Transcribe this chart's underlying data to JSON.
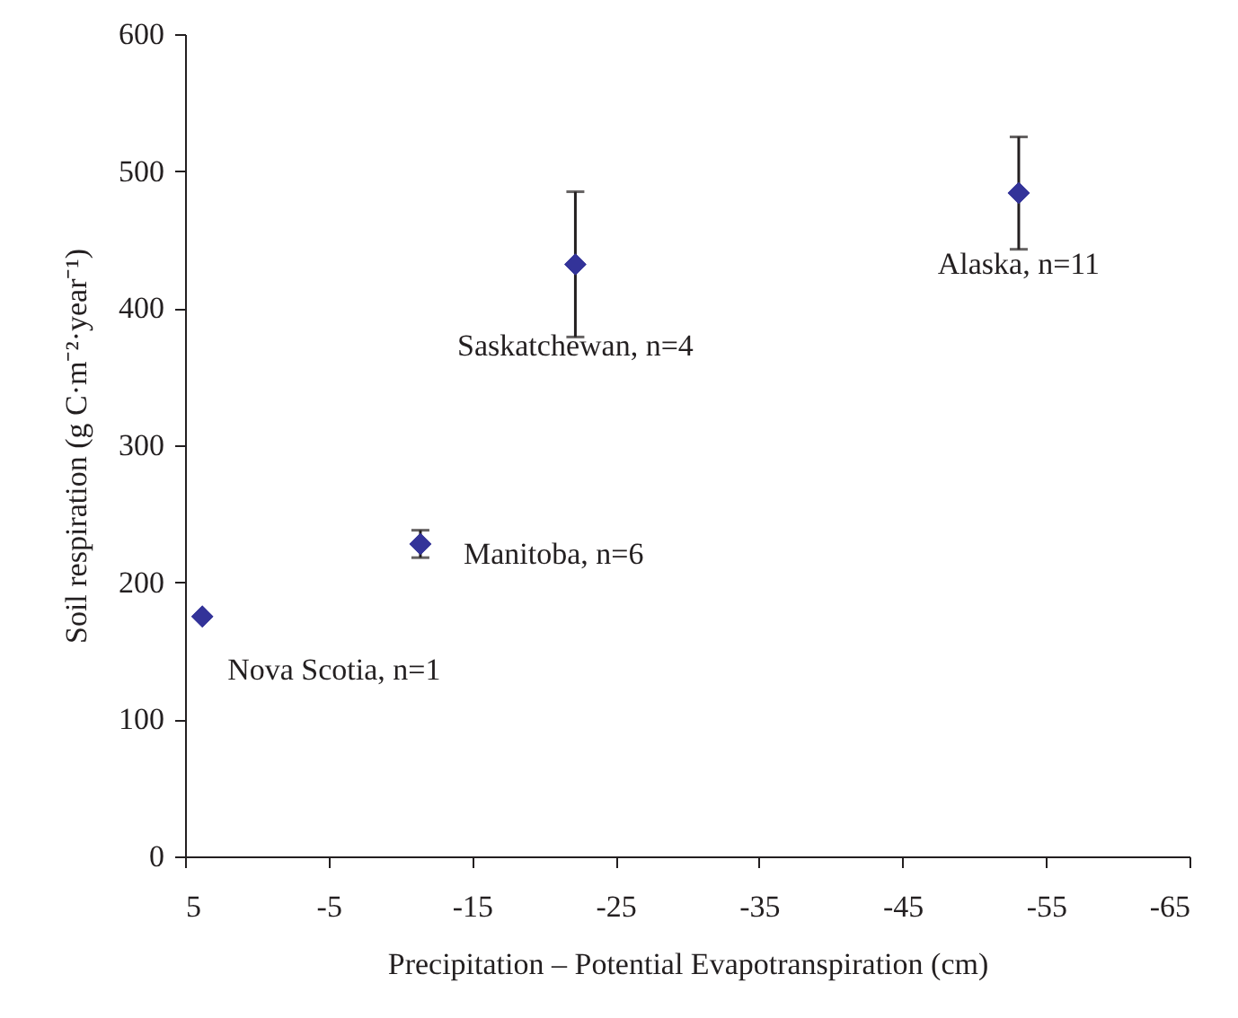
{
  "chart_data": {
    "type": "scatter",
    "xlabel": "Precipitation – Potential Evapotranspiration (cm)",
    "ylabel": "Soil respiration (g C·m⁻²·year⁻¹)",
    "x": [
      3.8,
      -11.4,
      -22.2,
      -53.1
    ],
    "series": [
      {
        "color": "#333399",
        "values": [
          175,
          228,
          432,
          484
        ],
        "errors": [
          null,
          10,
          53,
          41
        ]
      }
    ],
    "marker": "diamond",
    "grid": false,
    "xlim": [
      5,
      -65
    ],
    "xticks": [
      5,
      -5,
      -15,
      -25,
      -35,
      -45,
      -55,
      -65
    ],
    "ylim": [
      0,
      600
    ],
    "yticks": [
      0,
      100,
      200,
      300,
      400,
      500,
      600
    ],
    "annotations": [
      {
        "text": "Nova Scotia, n=1",
        "x": 3.8,
        "y": 175
      },
      {
        "text": "Manitoba, n=6",
        "x": -11.4,
        "y": 228
      },
      {
        "text": "Saskatchewan, n=4",
        "x": -22.2,
        "y": 432
      },
      {
        "text": "Alaska, n=11",
        "x": -53.1,
        "y": 484
      }
    ]
  }
}
